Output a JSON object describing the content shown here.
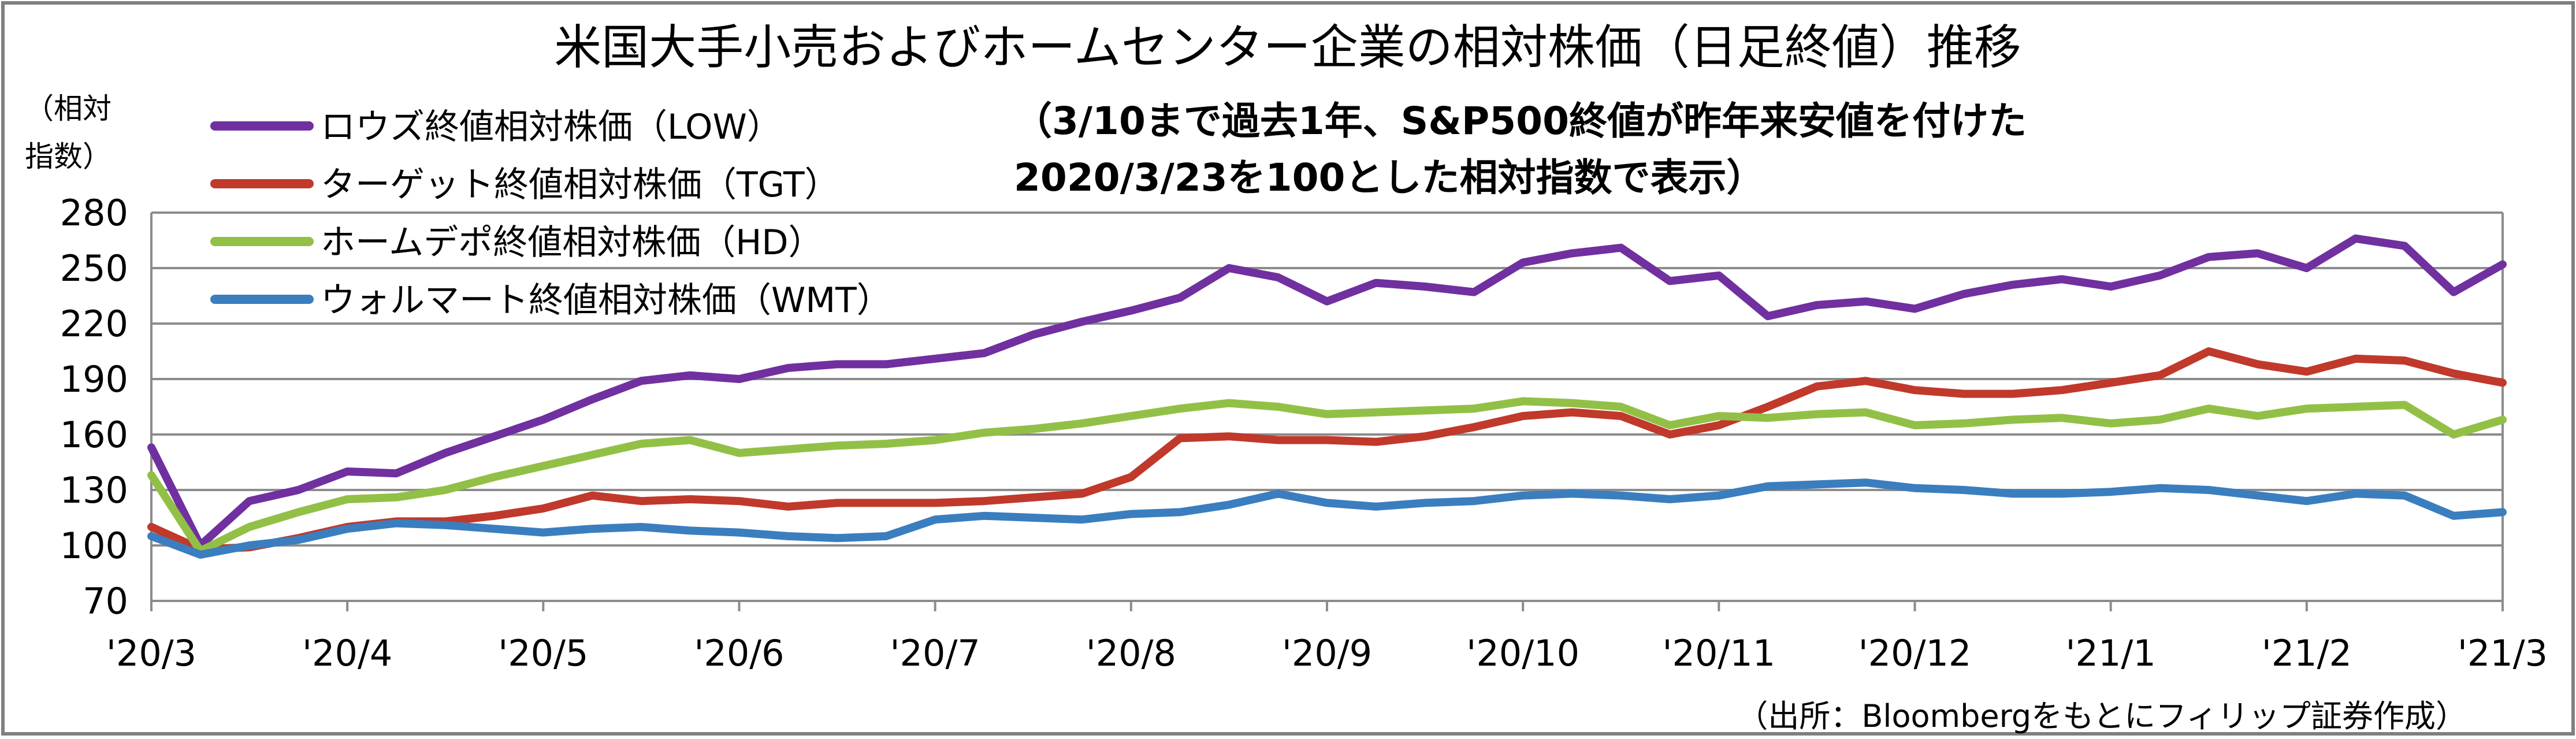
{
  "chart_data": {
    "type": "line",
    "title": "米国大手小売およびホームセンター企業の相対株価（日足終値）推移",
    "note_lines": [
      "（3/10まで過去1年、S&P500終値が昨年来安値を付けた",
      "2020/3/23を100とした相対指数で表示）"
    ],
    "ylabel_lines": [
      "（相対",
      "指数）"
    ],
    "source": "（出所：Bloombergをもとにフィリップ証券作成）",
    "ylim": [
      70,
      280
    ],
    "yticks": [
      70,
      100,
      130,
      160,
      190,
      220,
      250,
      280
    ],
    "xtick_labels": [
      "'20/3",
      "'20/4",
      "'20/5",
      "'20/6",
      "'20/7",
      "'20/8",
      "'20/9",
      "'20/10",
      "'20/11",
      "'20/12",
      "'21/1",
      "'21/2",
      "'21/3"
    ],
    "grid": true,
    "legend_position": "top-left",
    "x": [
      0,
      0.25,
      0.5,
      0.75,
      1,
      1.25,
      1.5,
      1.75,
      2,
      2.25,
      2.5,
      2.75,
      3,
      3.25,
      3.5,
      3.75,
      4,
      4.25,
      4.5,
      4.75,
      5,
      5.25,
      5.5,
      5.75,
      6,
      6.25,
      6.5,
      6.75,
      7,
      7.25,
      7.5,
      7.75,
      8,
      8.25,
      8.5,
      8.75,
      9,
      9.25,
      9.5,
      9.75,
      10,
      10.25,
      10.5,
      10.75,
      11,
      11.25,
      11.5,
      11.75,
      12
    ],
    "series": [
      {
        "name": "ロウズ終値相対株価（LOW）",
        "color": "#7030a0",
        "values": [
          153,
          100,
          124,
          130,
          140,
          139,
          150,
          159,
          168,
          179,
          189,
          192,
          190,
          196,
          198,
          198,
          201,
          204,
          214,
          221,
          227,
          234,
          250,
          245,
          232,
          242,
          240,
          237,
          253,
          258,
          261,
          243,
          246,
          224,
          230,
          232,
          228,
          236,
          241,
          244,
          240,
          246,
          256,
          258,
          250,
          266,
          262,
          237,
          252
        ]
      },
      {
        "name": "ターゲット終値相対株価（TGT）",
        "color": "#c0392b",
        "values": [
          110,
          98,
          99,
          104,
          110,
          113,
          113,
          116,
          120,
          127,
          124,
          125,
          124,
          121,
          123,
          123,
          123,
          124,
          126,
          128,
          137,
          158,
          159,
          157,
          157,
          156,
          159,
          164,
          170,
          172,
          170,
          160,
          165,
          175,
          186,
          189,
          184,
          182,
          182,
          184,
          188,
          192,
          205,
          198,
          194,
          201,
          200,
          193,
          188
        ]
      },
      {
        "name": "ホームデポ終値相対株価（HD）",
        "color": "#92c047",
        "values": [
          138,
          97,
          110,
          118,
          125,
          126,
          130,
          137,
          143,
          149,
          155,
          157,
          150,
          152,
          154,
          155,
          157,
          161,
          163,
          166,
          170,
          174,
          177,
          175,
          171,
          172,
          173,
          174,
          178,
          177,
          175,
          165,
          170,
          169,
          171,
          172,
          165,
          166,
          168,
          169,
          166,
          168,
          174,
          170,
          174,
          175,
          176,
          160,
          168
        ]
      },
      {
        "name": "ウォルマート終値相対株価（WMT）",
        "color": "#3a7ebf",
        "values": [
          105,
          95,
          100,
          103,
          109,
          112,
          111,
          109,
          107,
          109,
          110,
          108,
          107,
          105,
          104,
          105,
          114,
          116,
          115,
          114,
          117,
          118,
          122,
          128,
          123,
          121,
          123,
          124,
          127,
          128,
          127,
          125,
          127,
          132,
          133,
          134,
          131,
          130,
          128,
          128,
          129,
          131,
          130,
          127,
          124,
          128,
          127,
          116,
          118
        ]
      }
    ]
  }
}
